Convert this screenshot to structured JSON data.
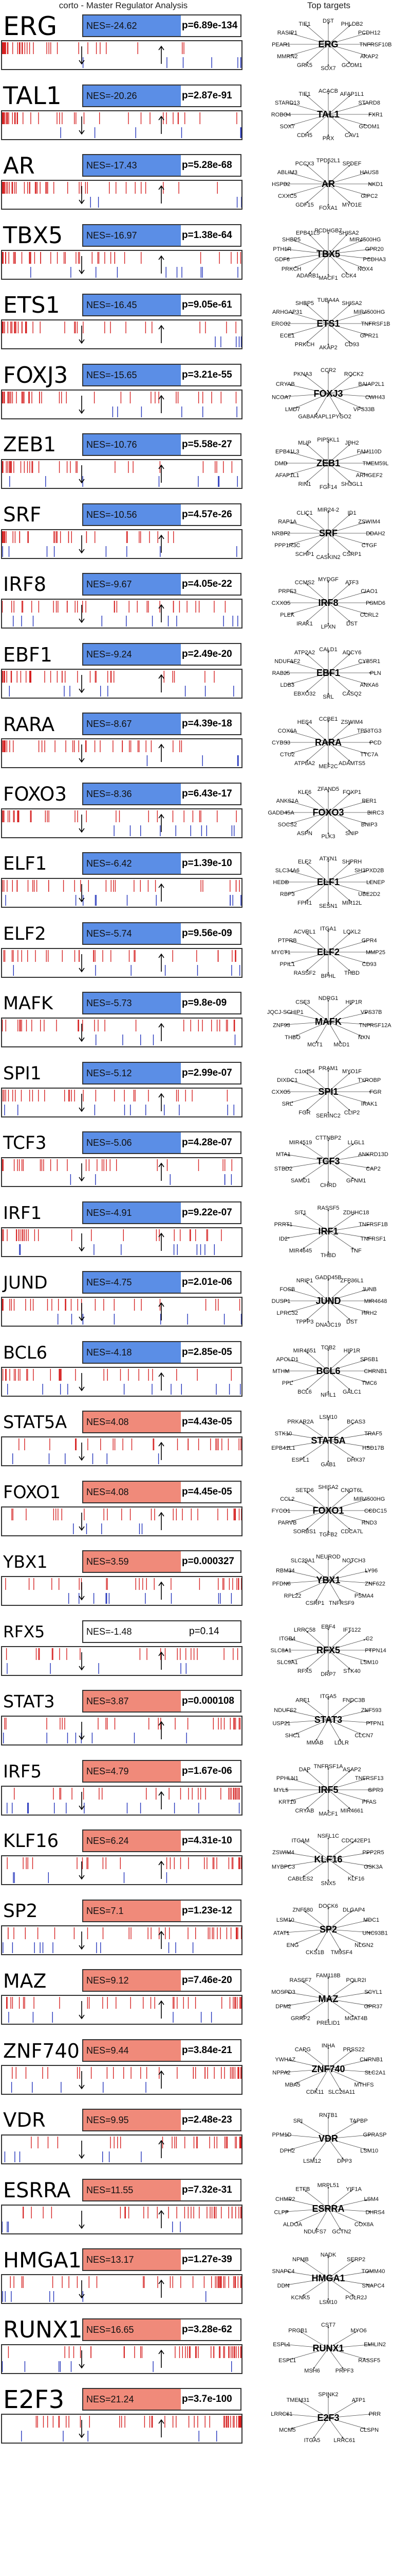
{
  "header": {
    "left": "corto - Master Regulator Analysis",
    "right": "Top targets"
  },
  "colors": {
    "negative": "#5b8ee6",
    "positive": "#f08a7a",
    "tick_red": "#d62020",
    "tick_blue": "#2233bb",
    "border": "#333333"
  },
  "chart_data": {
    "type": "table",
    "columns": [
      "TF",
      "NES",
      "p",
      "targets"
    ],
    "rows": [
      {
        "tf": "ERG",
        "nes": "NES=-24.62",
        "nes_value": -24.62,
        "p": "p=6.89e-134",
        "targets": [
          "DST",
          "PHLDB2",
          "PCDH12",
          "TNFRSF10B",
          "AKAP2",
          "GCOM1",
          "SOX7",
          "GRK5",
          "MMRN2",
          "PEAR1",
          "RASIP1",
          "TIE1"
        ]
      },
      {
        "tf": "TAL1",
        "nes": "NES=-20.26",
        "nes_value": -20.26,
        "p": "p=2.87e-91",
        "targets": [
          "ACACB",
          "AFAP1L1",
          "STARD8",
          "FXR1",
          "GCOM1",
          "CAV1",
          "PRX",
          "CDH5",
          "SOX7",
          "ROBO4",
          "STARD13",
          "TIE1"
        ]
      },
      {
        "tf": "AR",
        "nes": "NES=-17.43",
        "nes_value": -17.43,
        "p": "p=5.28e-68",
        "targets": [
          "TPD52L1",
          "SPDEF",
          "HAUS8",
          "NKD1",
          "GIPC2",
          "MYO1E",
          "FOXA1",
          "GDF15",
          "CXXC5",
          "HSPB2",
          "ABLIM3",
          "PCCX3"
        ]
      },
      {
        "tf": "TBX5",
        "nes": "NES=-16.97",
        "nes_value": -16.97,
        "p": "p=1.38e-64",
        "targets": [
          "PCDHGB7",
          "SHISA2",
          "MIR4500HG",
          "GPR20",
          "PCDHA3",
          "NOX4",
          "CCK4",
          "MACF1",
          "ADARB1",
          "PRKCH",
          "GDF6",
          "PTH1R",
          "SHBP5",
          "EPB41L5"
        ]
      },
      {
        "tf": "ETS1",
        "nes": "NES=-16.45",
        "nes_value": -16.45,
        "p": "p=9.05e-61",
        "targets": [
          "TUBA4A",
          "SHISA2",
          "MIR4500HG",
          "TNFRSF1B",
          "GPR21",
          "CD93",
          "AKAP2",
          "PRKCH",
          "ECE1",
          "ERCC2",
          "ARHGAP31",
          "SHBP5"
        ]
      },
      {
        "tf": "FOXJ3",
        "nes": "NES=-15.65",
        "nes_value": -15.65,
        "p": "p=3.21e-55",
        "targets": [
          "CCR2",
          "ROCK2",
          "BAIAP2L1",
          "CWH43",
          "VPS33B",
          "PYGO2",
          "GABARAPL1",
          "LMD7",
          "NCOA7",
          "CRYAB",
          "PKNA3"
        ]
      },
      {
        "tf": "ZEB1",
        "nes": "NES=-10.76",
        "nes_value": -10.76,
        "p": "p=5.58e-27",
        "targets": [
          "PIP5KL1",
          "JPH2",
          "FAM110D",
          "TMEM59L",
          "ARHGEF2",
          "SH3GL1",
          "FGF14",
          "RIN1",
          "AFAP1L1",
          "DMD",
          "EPB41L3",
          "MLIP"
        ]
      },
      {
        "tf": "SRF",
        "nes": "NES=-10.56",
        "nes_value": -10.56,
        "p": "p=4.57e-26",
        "targets": [
          "MIR24-2",
          "ID1",
          "ZSWIM4",
          "DDAH2",
          "CTGF",
          "CSRP1",
          "CASKIN2",
          "SCHP1",
          "PPP1R3C",
          "NRBF2",
          "RAP1A",
          "CLIC1"
        ]
      },
      {
        "tf": "IRF8",
        "nes": "NES=-9.67",
        "nes_value": -9.67,
        "p": "p=4.05e-22",
        "targets": [
          "MYDGF",
          "ATF3",
          "CIAO1",
          "PSMD6",
          "CCRL2",
          "DST",
          "LPXN",
          "IRAK1",
          "PLEK",
          "CXXC5",
          "PRPF3",
          "CCMS2"
        ]
      },
      {
        "tf": "EBF1",
        "nes": "NES=-9.24",
        "nes_value": -9.24,
        "p": "p=2.49e-20",
        "targets": [
          "CALD1",
          "ADCY6",
          "CYB5R1",
          "PLN",
          "ANXA6",
          "CASQ2",
          "SRL",
          "EBXO32",
          "LDB3",
          "RAB25",
          "NDUFAF2",
          "ATP2A2"
        ]
      },
      {
        "tf": "RARA",
        "nes": "NES=-8.67",
        "nes_value": -8.67,
        "p": "p=4.39e-18",
        "targets": [
          "CCBE1",
          "ZSWIM4",
          "TP53TG3",
          "PCD",
          "TTC7A",
          "ADAMTS5",
          "MEF2C",
          "ATP8A2",
          "CTU2",
          "CYBS3",
          "COX6A",
          "HES4"
        ]
      },
      {
        "tf": "FOXO3",
        "nes": "NES=-8.36",
        "nes_value": -8.36,
        "p": "p=6.43e-17",
        "targets": [
          "ZFAND5",
          "FOXP1",
          "PER1",
          "BIRC3",
          "BNIP3",
          "SNIP",
          "PLK3",
          "ASPN",
          "SOCS2",
          "GADD45A",
          "ANKS1A",
          "KLF6"
        ]
      },
      {
        "tf": "ELF1",
        "nes": "NES=-6.42",
        "nes_value": -6.42,
        "p": "p=1.39e-10",
        "targets": [
          "ATXN1",
          "SHPRH",
          "SH3PXD2B",
          "LENEP",
          "UBE2D2",
          "MIR12L",
          "SESN1",
          "FPR1",
          "RBP3",
          "HEDD",
          "SLC34A6",
          "ELF2"
        ]
      },
      {
        "tf": "ELF2",
        "nes": "NES=-5.74",
        "nes_value": -5.74,
        "p": "p=9.56e-09",
        "targets": [
          "ITGA1",
          "LOXL2",
          "GPR4",
          "MMP25",
          "CD93",
          "THBD",
          "BPHL",
          "RASSF2",
          "PPIL1",
          "MYCT1",
          "PTPRB",
          "ACVRL1"
        ]
      },
      {
        "tf": "MAFK",
        "nes": "NES=-5.73",
        "nes_value": -5.73,
        "p": "p=9.8e-09",
        "targets": [
          "NDRG1",
          "HIP1R",
          "VPS37B",
          "TNFRSF12A",
          "NXN",
          "MCD1",
          "MCT1",
          "THBO",
          "ZNF93",
          "JQCJ-SCHIP1",
          "CSF3"
        ]
      },
      {
        "tf": "SPI1",
        "nes": "NES=-5.12",
        "nes_value": -5.12,
        "p": "p=2.99e-07",
        "targets": [
          "PRAM1",
          "MYO1F",
          "TYROBP",
          "FGR",
          "IRAK1",
          "CLIP2",
          "SERINC2",
          "FGR",
          "SRL",
          "CXXC5",
          "DIXDC1",
          "C1orf54"
        ]
      },
      {
        "tf": "TCF3",
        "nes": "NES=-5.06",
        "nes_value": -5.06,
        "p": "p=4.28e-07",
        "targets": [
          "CTTNBP2",
          "LLGL1",
          "ANKRD13D",
          "CAP2",
          "GFNM1",
          "CHRD",
          "SAMD1",
          "STBD2",
          "MTA1",
          "MIR4519"
        ]
      },
      {
        "tf": "IRF1",
        "nes": "NES=-4.91",
        "nes_value": -4.91,
        "p": "p=9.22e-07",
        "targets": [
          "RASSF5",
          "ZDHHC18",
          "TNFRSF1B",
          "TNFRSF1",
          "TNF",
          "THBD",
          "MIR4645",
          "ID2",
          "PRRT1",
          "SIT1"
        ]
      },
      {
        "tf": "JUND",
        "nes": "NES=-4.75",
        "nes_value": -4.75,
        "p": "p=2.01e-06",
        "targets": [
          "GADD45B",
          "ZFP36L1",
          "JUNB",
          "MIR4648",
          "HRH2",
          "DST",
          "DNAJC19",
          "TPPP3",
          "LPRC32",
          "DUSP1",
          "FOSB",
          "NRIP1"
        ]
      },
      {
        "tf": "BCL6",
        "nes": "NES=-4.18",
        "nes_value": -4.18,
        "p": "p=2.85e-05",
        "targets": [
          "TOB2",
          "HIP1R",
          "SPSB1",
          "CHRNB1",
          "TMC6",
          "GALC1",
          "NFIL1",
          "BCL6",
          "PPL",
          "MTHM",
          "APOLD1",
          "MIR4651"
        ]
      },
      {
        "tf": "STAT5A",
        "nes": "NES=4.08",
        "nes_value": 4.08,
        "p": "p=4.43e-05",
        "targets": [
          "LSM10",
          "BCAS3",
          "TRAF5",
          "HSD17B",
          "DHX37",
          "GAB1",
          "ESPL1",
          "EPB41L1",
          "STK10",
          "PRKAR2A"
        ]
      },
      {
        "tf": "FOXO1",
        "nes": "NES=4.08",
        "nes_value": 4.08,
        "p": "p=4.45e-05",
        "targets": [
          "SHISA2",
          "CNOT6L",
          "MIR4500HG",
          "CCDC15",
          "RND3",
          "CDCA7L",
          "TGFB2",
          "SORBS1",
          "PARVB",
          "FYCO1",
          "CCL2",
          "SETD6"
        ]
      },
      {
        "tf": "YBX1",
        "nes": "NES=3.59",
        "nes_value": 3.59,
        "p": "p=0.000327",
        "targets": [
          "NEUROD",
          "NOTCH3",
          "LY96",
          "ZNF622",
          "PSMA4",
          "TNFRSF9",
          "CSRP1",
          "RPL22",
          "PFDN6",
          "RBM34",
          "SLC29A1"
        ]
      },
      {
        "tf": "RFX5",
        "nes": "NES=-1.48",
        "nes_value": -1.48,
        "p": "p=0.14",
        "targets": [
          "EBF4",
          "IFT122",
          "C2",
          "PTPN14",
          "LSM10",
          "STK40",
          "DRP7",
          "RFX5",
          "SLC9A1",
          "SLC8A1",
          "ITGB4",
          "LRRC58"
        ]
      },
      {
        "tf": "STAT3",
        "nes": "NES=3.87",
        "nes_value": 3.87,
        "p": "p=0.000108",
        "targets": [
          "ITGA5",
          "FNDC3B",
          "ZNF593",
          "PTPN1",
          "CLCN7",
          "LDLR",
          "MMAB",
          "SHC1",
          "USP21",
          "NDUFS2",
          "ARF1"
        ]
      },
      {
        "tf": "IRF5",
        "nes": "NES=4.79",
        "nes_value": 4.79,
        "p": "p=1.67e-06",
        "targets": [
          "TNFRSF1A",
          "ASAP2",
          "TNFRSF13",
          "GPR9",
          "PFAS",
          "MIR4661",
          "MACF1",
          "CRYAB",
          "KRT19",
          "MYL5",
          "PPHLN1",
          "DAP"
        ]
      },
      {
        "tf": "KLF16",
        "nes": "NES=6.24",
        "nes_value": 6.24,
        "p": "p=4.31e-10",
        "targets": [
          "NSFL1C",
          "CDC42EP1",
          "PPP2R5",
          "GSK3A",
          "KLF16",
          "SNX5",
          "CABLES2",
          "MYBPC3",
          "ZSWIM4",
          "ITGAM"
        ]
      },
      {
        "tf": "SP2",
        "nes": "NES=7.1",
        "nes_value": 7.1,
        "p": "p=1.23e-12",
        "targets": [
          "DOCK6",
          "DLGAP4",
          "MDC1",
          "UNC93B1",
          "NLGN2",
          "TM9SF4",
          "CKS1B",
          "ENG",
          "ATAT1",
          "LSM10",
          "ZNF580"
        ]
      },
      {
        "tf": "MAZ",
        "nes": "NES=9.12",
        "nes_value": 9.12,
        "p": "p=7.46e-20",
        "targets": [
          "FAM118B",
          "POLR2I",
          "SCYL1",
          "GPR37",
          "MGAT4B",
          "PRELID1",
          "GRRP2",
          "DPM2",
          "MOSPD3",
          "RASSF7"
        ]
      },
      {
        "tf": "ZNF740",
        "nes": "NES=9.44",
        "nes_value": 9.44,
        "p": "p=3.84e-21",
        "targets": [
          "INHA",
          "PRSS22",
          "CHRNB1",
          "SLC2A1",
          "MTHFS",
          "SLC26A11",
          "CDK11",
          "MBA5",
          "NPPA2",
          "YWHAZ",
          "CAPG"
        ]
      },
      {
        "tf": "VDR",
        "nes": "NES=9.95",
        "nes_value": 9.95,
        "p": "p=2.48e-23",
        "targets": [
          "RNTB1",
          "TAPBP",
          "GPRASP",
          "LSM10",
          "DPP3",
          "LSM12",
          "DPH2",
          "PPM1D",
          "SRI"
        ]
      },
      {
        "tf": "ESRRA",
        "nes": "NES=11.55",
        "nes_value": 11.55,
        "p": "p=7.32e-31",
        "targets": [
          "MRPL51",
          "YIF1A",
          "LSM4",
          "DHRS4",
          "COX8A",
          "GCTN2",
          "NDUFS7",
          "ALDOA",
          "CLPP",
          "CHMP2",
          "ETFB"
        ]
      },
      {
        "tf": "HMGA1",
        "nes": "NES=13.17",
        "nes_value": 13.17,
        "p": "p=1.27e-39",
        "targets": [
          "NADK",
          "SERP2",
          "TOMM40",
          "SNAPC4",
          "POLR2J",
          "LSM10",
          "KCNK5",
          "DDN",
          "SNAPC4",
          "NPMB"
        ]
      },
      {
        "tf": "RUNX1",
        "nes": "NES=16.65",
        "nes_value": 16.65,
        "p": "p=3.28e-62",
        "targets": [
          "CST7",
          "MYO6",
          "EMILIN2",
          "RASSF5",
          "PRPF3",
          "MSH6",
          "ESPL1",
          "ESPL1",
          "PROB1"
        ]
      },
      {
        "tf": "E2F3",
        "nes": "NES=21.24",
        "nes_value": 21.24,
        "p": "p=3.7e-100",
        "targets": [
          "SPINK2",
          "ATP1",
          "PRR",
          "CLSPN",
          "LRRC61",
          "ITGA5",
          "MCM5",
          "LRRC61",
          "TMEM31"
        ]
      }
    ]
  }
}
